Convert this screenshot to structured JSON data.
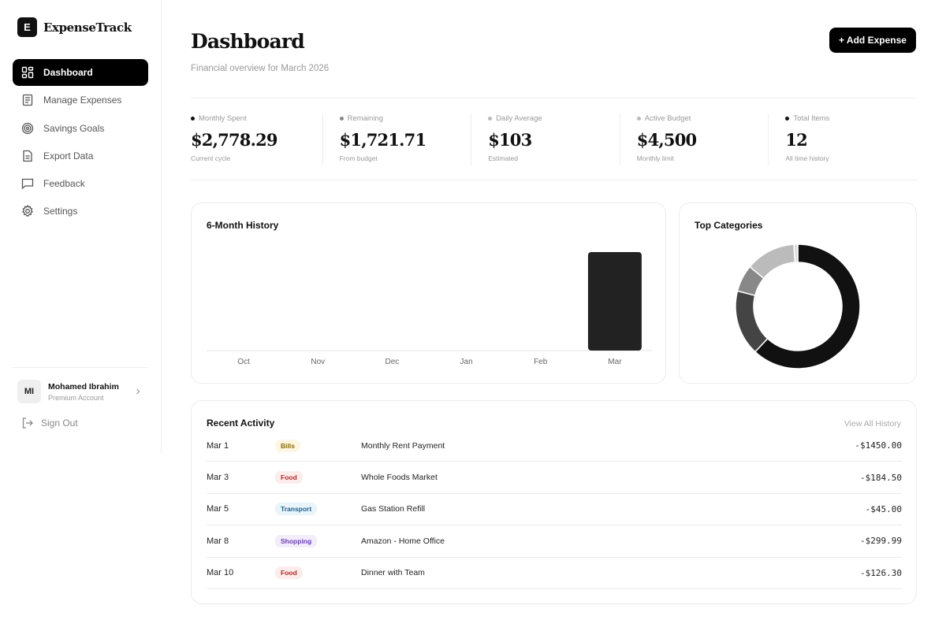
{
  "brand": {
    "logo_letter": "E",
    "name": "ExpenseTrack"
  },
  "sidebar": {
    "items": [
      {
        "label": "Dashboard",
        "icon": "grid-icon",
        "active": true
      },
      {
        "label": "Manage Expenses",
        "icon": "receipt-icon",
        "active": false
      },
      {
        "label": "Savings Goals",
        "icon": "target-icon",
        "active": false
      },
      {
        "label": "Export Data",
        "icon": "file-icon",
        "active": false
      },
      {
        "label": "Feedback",
        "icon": "message-icon",
        "active": false
      },
      {
        "label": "Settings",
        "icon": "gear-icon",
        "active": false
      }
    ],
    "user": {
      "initials": "MI",
      "name": "Mohamed Ibrahim",
      "role": "Premium Account"
    },
    "signout_label": "Sign Out"
  },
  "header": {
    "title": "Dashboard",
    "subtitle": "Financial overview for March 2026",
    "add_button_label": "+ Add Expense"
  },
  "stats": [
    {
      "label": "Monthly Spent",
      "value": "$2,778.29",
      "note": "Current cycle",
      "dot_color": "#111111"
    },
    {
      "label": "Remaining",
      "value": "$1,721.71",
      "note": "From budget",
      "dot_color": "#888888"
    },
    {
      "label": "Daily Average",
      "value": "$103",
      "note": "Estimated",
      "dot_color": "#bbbbbb"
    },
    {
      "label": "Active Budget",
      "value": "$4,500",
      "note": "Monthly limit",
      "dot_color": "#bbbbbb"
    },
    {
      "label": "Total Items",
      "value": "12",
      "note": "All time history",
      "dot_color": "#111111"
    }
  ],
  "history": {
    "title": "6-Month History"
  },
  "categories": {
    "title": "Top Categories"
  },
  "chart_data": [
    {
      "type": "bar",
      "title": "6-Month History",
      "categories": [
        "Oct",
        "Nov",
        "Dec",
        "Jan",
        "Feb",
        "Mar"
      ],
      "values": [
        0,
        0,
        0,
        0,
        0,
        2778.29
      ],
      "ylim": [
        0,
        2778.29
      ],
      "grid": false,
      "bar_color": "#222222"
    },
    {
      "type": "pie",
      "title": "Top Categories",
      "donut": true,
      "values": [
        62,
        17,
        7,
        13,
        1
      ],
      "colors": [
        "#111111",
        "#444444",
        "#888888",
        "#bbbbbb",
        "#dddddd"
      ]
    }
  ],
  "activity": {
    "title": "Recent Activity",
    "view_all_label": "View All History",
    "rows": [
      {
        "date": "Mar 1",
        "category": "Bills",
        "description": "Monthly Rent Payment",
        "amount": "-$1450.00",
        "badge_bg": "#fdf6e3",
        "badge_fg": "#8a6a00"
      },
      {
        "date": "Mar 3",
        "category": "Food",
        "description": "Whole Foods Market",
        "amount": "-$184.50",
        "badge_bg": "#fdecec",
        "badge_fg": "#b02a2a"
      },
      {
        "date": "Mar 5",
        "category": "Transport",
        "description": "Gas Station Refill",
        "amount": "-$45.00",
        "badge_bg": "#eaf4fb",
        "badge_fg": "#1f5f8b"
      },
      {
        "date": "Mar 8",
        "category": "Shopping",
        "description": "Amazon - Home Office",
        "amount": "-$299.99",
        "badge_bg": "#f2ecfb",
        "badge_fg": "#6a3fb0"
      },
      {
        "date": "Mar 10",
        "category": "Food",
        "description": "Dinner with Team",
        "amount": "-$126.30",
        "badge_bg": "#fdecec",
        "badge_fg": "#b02a2a"
      }
    ]
  }
}
